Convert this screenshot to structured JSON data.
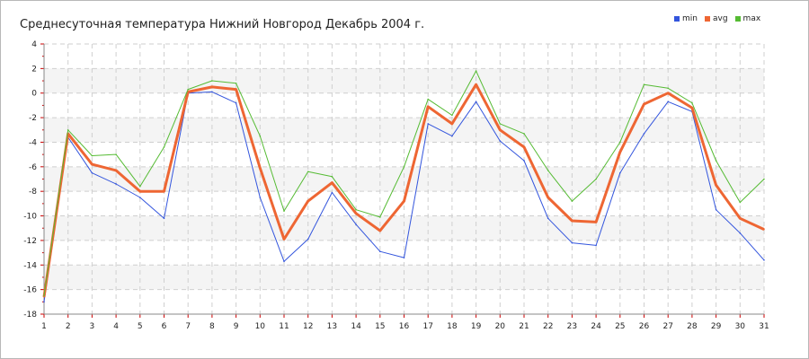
{
  "chart_data": {
    "type": "line",
    "title": "Среднесуточная температура Нижний Новгород  Декабрь 2004 г.",
    "xlabel": "",
    "ylabel": "",
    "x": [
      1,
      2,
      3,
      4,
      5,
      6,
      7,
      8,
      9,
      10,
      11,
      12,
      13,
      14,
      15,
      16,
      17,
      18,
      19,
      20,
      21,
      22,
      23,
      24,
      25,
      26,
      27,
      28,
      29,
      30,
      31
    ],
    "xlim": [
      1,
      31
    ],
    "ylim": [
      -18,
      4
    ],
    "yticks": [
      4,
      2,
      0,
      -2,
      -4,
      -6,
      -8,
      -10,
      -12,
      -14,
      -16,
      -18
    ],
    "grid": true,
    "legend_position": "top-right",
    "series": [
      {
        "name": "min",
        "color": "#3355dd",
        "values": [
          -17.0,
          -3.6,
          -6.5,
          -7.4,
          -8.5,
          -10.2,
          0.0,
          0.1,
          -0.8,
          -8.5,
          -13.7,
          -11.9,
          -8.1,
          -10.7,
          -12.9,
          -13.4,
          -2.5,
          -3.5,
          -0.7,
          -3.9,
          -5.5,
          -10.2,
          -12.2,
          -12.4,
          -6.5,
          -3.3,
          -0.7,
          -1.5,
          -9.5,
          -11.4,
          -13.6
        ]
      },
      {
        "name": "avg",
        "color": "#ee6633",
        "values": [
          -16.6,
          -3.3,
          -5.8,
          -6.3,
          -8.0,
          -8.0,
          0.1,
          0.5,
          0.3,
          -6.1,
          -11.9,
          -8.8,
          -7.3,
          -9.8,
          -11.2,
          -8.8,
          -1.1,
          -2.5,
          0.7,
          -3.0,
          -4.4,
          -8.5,
          -10.4,
          -10.5,
          -4.8,
          -0.9,
          0.0,
          -1.2,
          -7.5,
          -10.2,
          -11.1
        ]
      },
      {
        "name": "max",
        "color": "#55bb33",
        "values": [
          -16.5,
          -3.0,
          -5.1,
          -5.0,
          -7.6,
          -4.4,
          0.3,
          1.0,
          0.8,
          -3.5,
          -9.6,
          -6.4,
          -6.8,
          -9.5,
          -10.1,
          -6.0,
          -0.5,
          -1.8,
          1.8,
          -2.5,
          -3.3,
          -6.3,
          -8.8,
          -7.0,
          -4.0,
          0.7,
          0.4,
          -0.8,
          -5.5,
          -8.9,
          -7.0
        ]
      }
    ]
  }
}
